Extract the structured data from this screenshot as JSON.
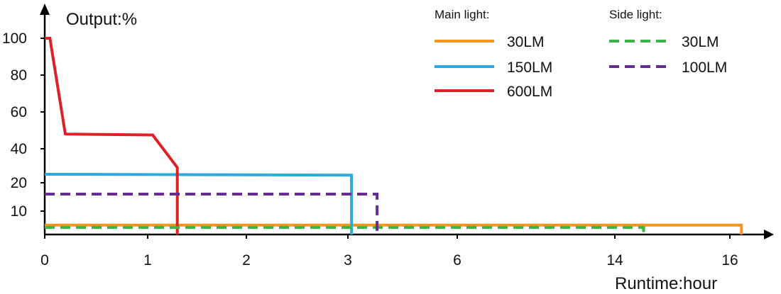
{
  "chart_data": {
    "type": "line",
    "ylabel": "Output:%",
    "xlabel": "Runtime:hour",
    "x_ticks": [
      "0",
      "1",
      "2",
      "3",
      "6",
      "14",
      "16"
    ],
    "y_ticks": [
      "10",
      "20",
      "40",
      "60",
      "80",
      "100"
    ],
    "grid": false,
    "legend_placement": "top-right",
    "legend_groups": [
      {
        "title": "Main light:",
        "style": "solid"
      },
      {
        "title": "Side light:",
        "style": "dashed"
      }
    ],
    "series": [
      {
        "name": "30LM",
        "group": "Main light:",
        "color": "#F7941D",
        "style": "solid",
        "points": [
          [
            0,
            4
          ],
          [
            16.2,
            4
          ],
          [
            16.2,
            0
          ]
        ]
      },
      {
        "name": "150LM",
        "group": "Main light:",
        "color": "#29ABE2",
        "style": "solid",
        "points": [
          [
            0,
            25
          ],
          [
            3.1,
            24.5
          ],
          [
            3.1,
            0
          ]
        ]
      },
      {
        "name": "600LM",
        "group": "Main light:",
        "color": "#E02027",
        "style": "solid",
        "points": [
          [
            0,
            100
          ],
          [
            0.05,
            100
          ],
          [
            0.2,
            48
          ],
          [
            1.05,
            47.5
          ],
          [
            1.3,
            29
          ],
          [
            1.3,
            0
          ]
        ]
      },
      {
        "name": "30LM",
        "group": "Side light:",
        "color": "#39B54A",
        "style": "dashed",
        "points": [
          [
            0,
            3
          ],
          [
            14.5,
            3
          ],
          [
            14.5,
            0
          ]
        ]
      },
      {
        "name": "100LM",
        "group": "Side light:",
        "color": "#662D91",
        "style": "dashed",
        "points": [
          [
            0,
            16
          ],
          [
            3.8,
            16
          ],
          [
            3.8,
            0
          ]
        ]
      }
    ]
  }
}
